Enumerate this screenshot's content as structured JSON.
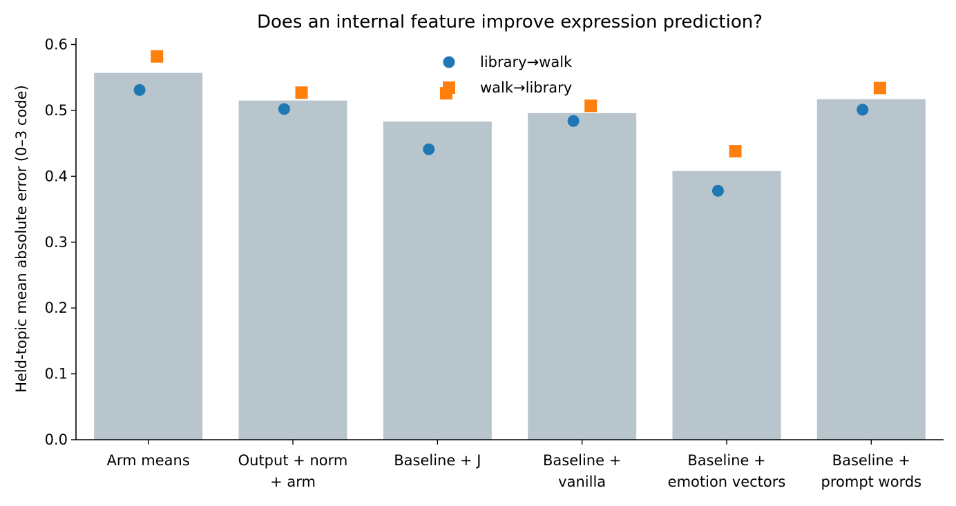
{
  "chart_data": {
    "type": "bar",
    "title": "Does an internal feature improve expression prediction?",
    "xlabel": "",
    "ylabel": "Held-topic mean absolute error (0–3 code)",
    "ylim": [
      0,
      0.61
    ],
    "yticks": [
      0.0,
      0.1,
      0.2,
      0.3,
      0.4,
      0.5,
      0.6
    ],
    "ytick_labels": [
      "0.0",
      "0.1",
      "0.2",
      "0.3",
      "0.4",
      "0.5",
      "0.6"
    ],
    "categories": [
      [
        "Arm means"
      ],
      [
        "Output + norm",
        "+ arm"
      ],
      [
        "Baseline + J"
      ],
      [
        "Baseline +",
        "vanilla"
      ],
      [
        "Baseline +",
        "emotion vectors"
      ],
      [
        "Baseline +",
        "prompt words"
      ]
    ],
    "bar_values": [
      0.557,
      0.515,
      0.483,
      0.496,
      0.408,
      0.517
    ],
    "bar_color": "#b8c5cd",
    "series": [
      {
        "name": "library→walk",
        "marker": "circle",
        "color": "#1f77b4",
        "values": [
          0.531,
          0.502,
          0.441,
          0.484,
          0.378,
          0.501
        ]
      },
      {
        "name": "walk→library",
        "marker": "square",
        "color": "#ff7f0e",
        "values": [
          0.582,
          0.527,
          0.526,
          0.507,
          0.438,
          0.534
        ]
      }
    ],
    "legend_position": "top-center",
    "grid": false
  }
}
